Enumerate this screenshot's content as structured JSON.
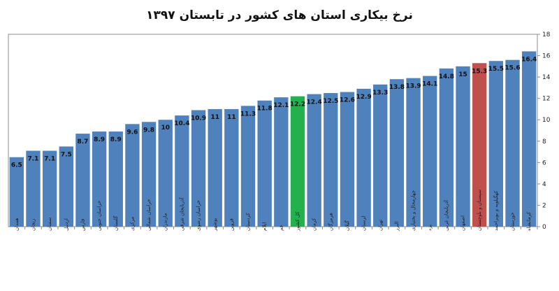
{
  "chart_data": {
    "type": "bar",
    "title": "نرخ بیکاری استان های کشور در تابستان ۱۳۹۷",
    "xlabel": "",
    "ylabel": "",
    "ylim": [
      0,
      18
    ],
    "yticks": [
      0,
      2,
      4,
      6,
      8,
      10,
      12,
      14,
      16,
      18
    ],
    "y_axis_side": "right",
    "grid": false,
    "legend": "none",
    "categories": [
      "همدان",
      "زنجان",
      "سمنان",
      "اردبیل",
      "فارس",
      "خراسان جنوبی",
      "گلستان",
      "مرکزی",
      "خراسان شمالی",
      "مازندران",
      "آذربایجان شرقی",
      "خراسان رضوی",
      "بوشهر",
      "قزوین",
      "کردستان",
      "ایلام",
      "قم",
      "کل کشور",
      "کرمان",
      "هرمزگان",
      "گیلان",
      "لرستان",
      "تهران",
      "البرز",
      "چهارمحال و بختیاری",
      "یزد",
      "آذربایجان غربی",
      "اصفهان",
      "سیستان و بلوچستان",
      "کهگیلویه و بویراحمد",
      "خوزستان",
      "کرمانشاه"
    ],
    "values": [
      6.5,
      7.1,
      7.1,
      7.5,
      8.7,
      8.9,
      8.9,
      9.6,
      9.8,
      10,
      10.4,
      10.9,
      11,
      11,
      11.3,
      11.8,
      12.1,
      12.2,
      12.4,
      12.5,
      12.6,
      12.9,
      13.3,
      13.8,
      13.9,
      14.1,
      14.8,
      15,
      15.3,
      15.5,
      15.6,
      16.4
    ],
    "value_labels": [
      "6.5",
      "7.1",
      "7.1",
      "7.5",
      "8.7",
      "8.9",
      "8.9",
      "9.6",
      "9.8",
      "10",
      "10.4",
      "10.9",
      "11",
      "11",
      "11.3",
      "11.8",
      "12.1",
      "12.2",
      "12.4",
      "12.5",
      "12.6",
      "12.9",
      "13.3",
      "13.8",
      "13.9",
      "14.1",
      "14.8",
      "15",
      "15.3",
      "15.5",
      "15.6",
      "16.4"
    ],
    "colors": {
      "default": "#4f81bd",
      "highlight_national": "#22b14c",
      "highlight_max_province": "#c0504d"
    },
    "highlight": {
      "کل کشور": "highlight_national",
      "سیستان و بلوچستان": "highlight_max_province"
    }
  }
}
